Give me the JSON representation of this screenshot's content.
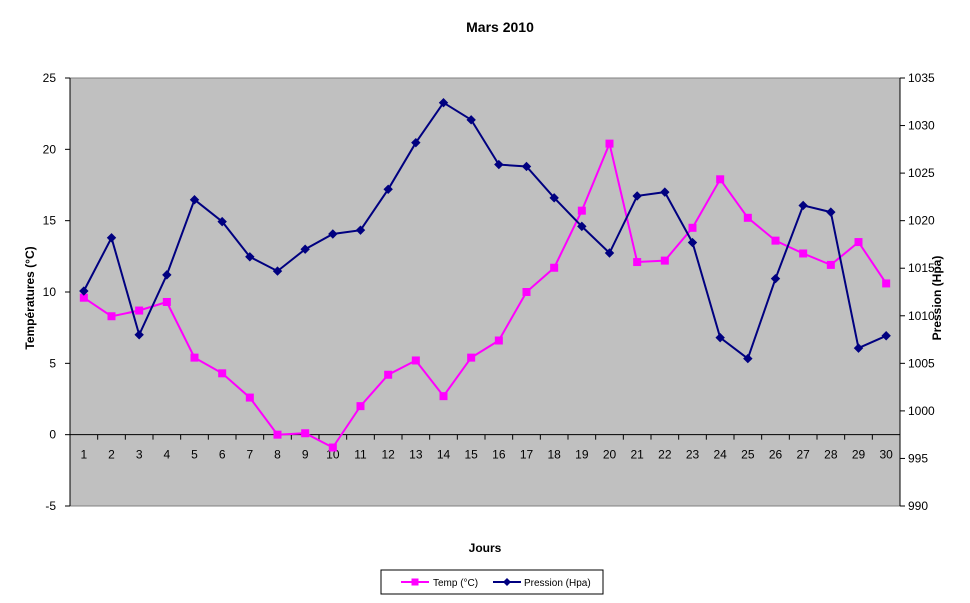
{
  "chart_data": {
    "type": "line",
    "title": "Mars 2010",
    "xlabel": "Jours",
    "ylabel_left": "Températures (°C)",
    "ylabel_right": "Pression (Hpa)",
    "ylim_left": [
      -5,
      25
    ],
    "yticks_left": [
      -5,
      0,
      5,
      10,
      15,
      20,
      25
    ],
    "ylim_right": [
      990,
      1035
    ],
    "yticks_right": [
      990,
      995,
      1000,
      1005,
      1010,
      1015,
      1020,
      1025,
      1030,
      1035
    ],
    "categories": [
      "1",
      "2",
      "3",
      "4",
      "5",
      "6",
      "7",
      "8",
      "9",
      "10",
      "11",
      "12",
      "13",
      "14",
      "15",
      "16",
      "17",
      "18",
      "19",
      "20",
      "21",
      "22",
      "23",
      "24",
      "25",
      "26",
      "27",
      "28",
      "29",
      "30"
    ],
    "legend_position": "bottom",
    "grid": false,
    "plot_background": "#c0c0c0",
    "series": [
      {
        "name": "Temp (°C)",
        "axis": "left",
        "color": "#ff00ff",
        "marker": "square",
        "values": [
          9.6,
          8.3,
          8.7,
          9.3,
          5.4,
          4.3,
          2.6,
          0.0,
          0.1,
          -0.9,
          2.0,
          4.2,
          5.2,
          2.7,
          5.4,
          6.6,
          10.0,
          11.7,
          15.7,
          20.4,
          12.1,
          12.2,
          14.5,
          17.9,
          15.2,
          13.6,
          12.7,
          11.9,
          13.5,
          10.6
        ]
      },
      {
        "name": "Pression (Hpa)",
        "axis": "right",
        "color": "#000080",
        "marker": "diamond",
        "values": [
          1012.6,
          1018.2,
          1008.0,
          1014.3,
          1022.2,
          1019.9,
          1016.2,
          1014.7,
          1017.0,
          1018.6,
          1019.0,
          1023.3,
          1028.2,
          1032.4,
          1030.6,
          1025.9,
          1025.7,
          1022.4,
          1019.4,
          1016.6,
          1022.6,
          1023.0,
          1017.7,
          1007.7,
          1005.5,
          1013.9,
          1021.6,
          1020.9,
          1006.6,
          1007.9
        ]
      }
    ]
  }
}
